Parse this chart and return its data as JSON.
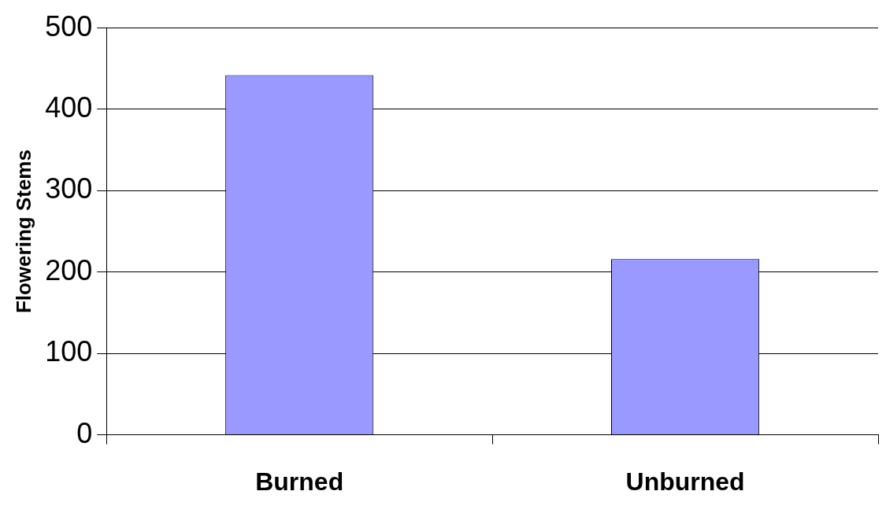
{
  "chart_data": {
    "type": "bar",
    "ylabel": "Flowering Stems",
    "categories": [
      "Burned",
      "Unburned"
    ],
    "values": [
      442,
      216
    ],
    "color": "#9999ff",
    "ylim": [
      0,
      500
    ],
    "yticks": [
      0,
      100,
      200,
      300,
      400,
      500
    ],
    "grid": "y"
  }
}
